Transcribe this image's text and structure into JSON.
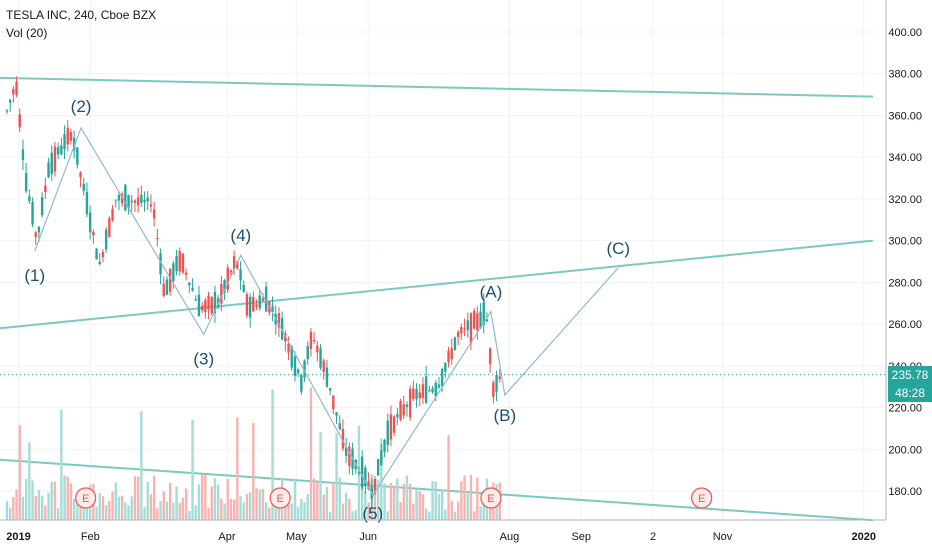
{
  "header": {
    "symbol_line": "TESLA INC, 240, Cboe BZX",
    "indicator_line": "Vol (20)"
  },
  "price_tags": {
    "last_price": "235.78",
    "countdown": "48:28"
  },
  "colors": {
    "up": "#26a69a",
    "down": "#ef5350",
    "vol_up": "#a6dcd6",
    "vol_down": "#f7b3b1",
    "trendline": "#7cc9c0",
    "wave": "#8fb8d8",
    "last_price_bg": "#26a69a",
    "countdown_bg": "#26a69a",
    "earnings": "#ef5350"
  },
  "chart_data": {
    "type": "candlestick",
    "title": "TESLA INC, 240, Cboe BZX",
    "y_axis": {
      "ticks": [
        "180.00",
        "200.00",
        "220.00",
        "240.00",
        "260.00",
        "280.00",
        "300.00",
        "320.00",
        "340.00",
        "360.00",
        "380.00",
        "400.00"
      ],
      "range": [
        166,
        410
      ]
    },
    "x_axis": {
      "ticks": [
        "2019",
        "Feb",
        "Apr",
        "May",
        "Jun",
        "Aug",
        "Sep",
        "2",
        "Nov",
        "2020"
      ]
    },
    "price_path": [
      {
        "date": "2018-12-27",
        "price": 362
      },
      {
        "date": "2018-12-31",
        "price": 376
      },
      {
        "date": "2019-01-04",
        "price": 330
      },
      {
        "date": "2019-01-09",
        "price": 300
      },
      {
        "date": "2019-01-14",
        "price": 335
      },
      {
        "date": "2019-01-24",
        "price": 352
      },
      {
        "date": "2019-01-30",
        "price": 320
      },
      {
        "date": "2019-02-05",
        "price": 288
      },
      {
        "date": "2019-02-12",
        "price": 320
      },
      {
        "date": "2019-02-28",
        "price": 318
      },
      {
        "date": "2019-03-05",
        "price": 275
      },
      {
        "date": "2019-03-12",
        "price": 292
      },
      {
        "date": "2019-03-20",
        "price": 268
      },
      {
        "date": "2019-03-28",
        "price": 270
      },
      {
        "date": "2019-04-05",
        "price": 291
      },
      {
        "date": "2019-04-10",
        "price": 268
      },
      {
        "date": "2019-04-18",
        "price": 272
      },
      {
        "date": "2019-04-25",
        "price": 258
      },
      {
        "date": "2019-05-03",
        "price": 232
      },
      {
        "date": "2019-05-08",
        "price": 255
      },
      {
        "date": "2019-05-15",
        "price": 232
      },
      {
        "date": "2019-05-22",
        "price": 200
      },
      {
        "date": "2019-06-03",
        "price": 180
      },
      {
        "date": "2019-06-10",
        "price": 210
      },
      {
        "date": "2019-06-20",
        "price": 225
      },
      {
        "date": "2019-07-01",
        "price": 230
      },
      {
        "date": "2019-07-10",
        "price": 255
      },
      {
        "date": "2019-07-22",
        "price": 265
      },
      {
        "date": "2019-07-25",
        "price": 230
      },
      {
        "date": "2019-07-29",
        "price": 236
      }
    ],
    "elliott_wave": [
      {
        "label": "(1)",
        "date": "2019-01-08",
        "price": 295
      },
      {
        "label": "(2)",
        "date": "2019-01-28",
        "price": 354
      },
      {
        "label": "(3)",
        "date": "2019-03-22",
        "price": 255
      },
      {
        "label": "(4)",
        "date": "2019-04-07",
        "price": 293
      },
      {
        "label": "(5)",
        "date": "2019-06-03",
        "price": 178
      },
      {
        "label": "(A)",
        "date": "2019-07-24",
        "price": 266
      },
      {
        "label": "(B)",
        "date": "2019-07-30",
        "price": 226
      },
      {
        "label": "(C)",
        "date": "2019-09-17",
        "price": 287
      }
    ],
    "trendlines": [
      {
        "start": {
          "date": "2018-12-24",
          "price": 378
        },
        "end": {
          "date": "2020-01-05",
          "price": 369
        }
      },
      {
        "start": {
          "date": "2018-12-24",
          "price": 258
        },
        "end": {
          "date": "2020-01-05",
          "price": 300
        }
      },
      {
        "start": {
          "date": "2018-12-24",
          "price": 195
        },
        "end": {
          "date": "2020-01-05",
          "price": 166
        }
      }
    ],
    "earnings_markers": [
      {
        "label": "E",
        "date": "2019-01-30"
      },
      {
        "label": "E",
        "date": "2019-04-24"
      },
      {
        "label": "E",
        "date": "2019-07-24"
      },
      {
        "label": "E",
        "date": "2019-10-23"
      }
    ],
    "last_price": 235.78
  }
}
